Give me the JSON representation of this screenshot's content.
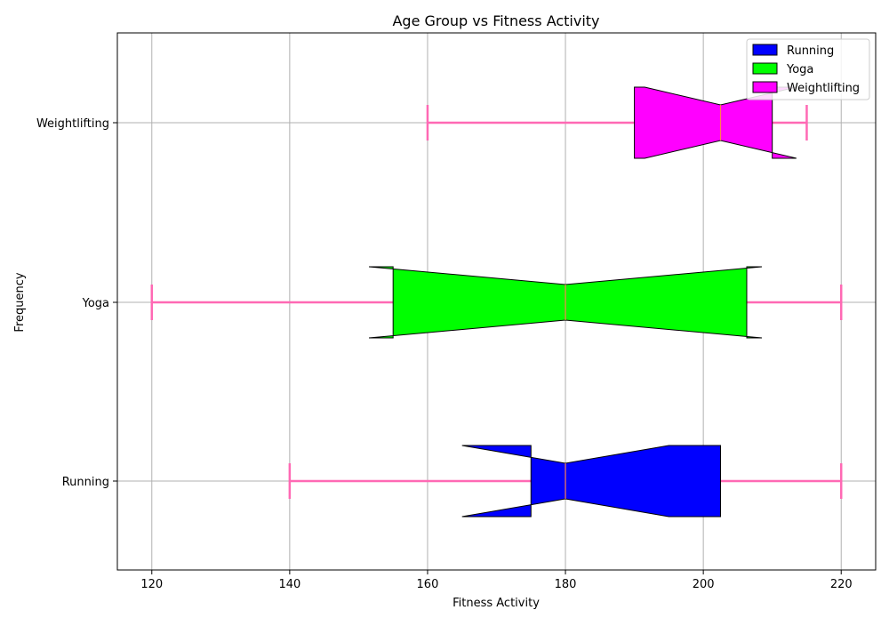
{
  "chart_data": {
    "type": "boxplot",
    "orientation": "horizontal",
    "notched": true,
    "title": "Age Group vs Fitness Activity",
    "xlabel": "Fitness Activity",
    "ylabel": "Frequency",
    "xlim": [
      115,
      225
    ],
    "xticks": [
      120,
      140,
      160,
      180,
      200,
      220
    ],
    "grid": true,
    "legend_position": "top-right",
    "whisker_color": "#ff69b4",
    "median_color": "#ff7f50",
    "categories": [
      "Running",
      "Yoga",
      "Weightlifting"
    ],
    "series": [
      {
        "name": "Running",
        "color": "#0000ff",
        "whisker_low": 140,
        "q1": 175,
        "median": 180,
        "q3": 202.5,
        "whisker_high": 220,
        "notch_low": 165,
        "notch_high": 195
      },
      {
        "name": "Yoga",
        "color": "#00ff00",
        "whisker_low": 120,
        "q1": 155,
        "median": 180,
        "q3": 206.3,
        "whisker_high": 220,
        "notch_low": 151.5,
        "notch_high": 208.5
      },
      {
        "name": "Weightlifting",
        "color": "#ff00ff",
        "whisker_low": 160,
        "q1": 190,
        "median": 202.5,
        "q3": 210,
        "whisker_high": 215,
        "notch_low": 191.5,
        "notch_high": 213.5
      }
    ]
  }
}
